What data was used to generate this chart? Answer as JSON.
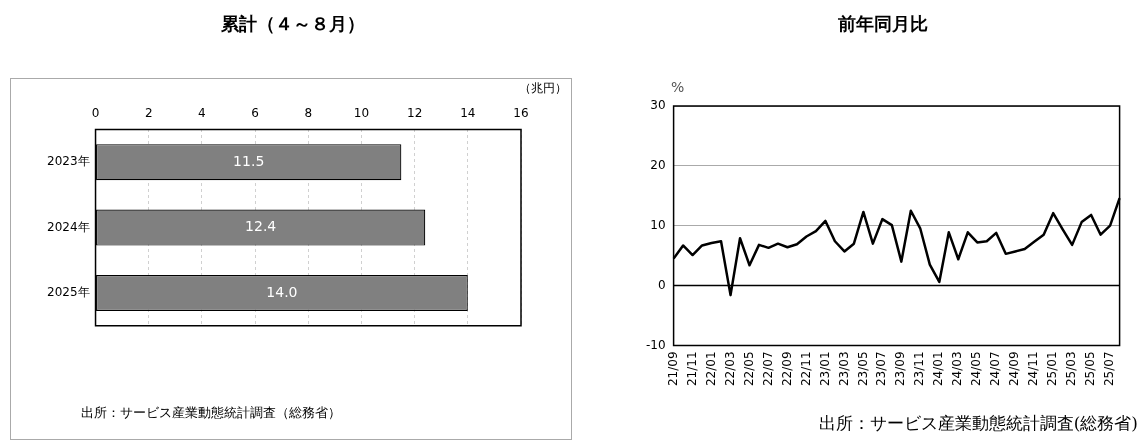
{
  "chart_data": [
    {
      "type": "bar",
      "title": "累計（４～８月）",
      "orientation": "horizontal",
      "categories": [
        "2023年",
        "2024年",
        "2025年"
      ],
      "values": [
        11.5,
        12.4,
        14.0
      ],
      "color": "#808080",
      "xlim": [
        0,
        16
      ],
      "xticks": [
        0,
        2,
        4,
        6,
        8,
        10,
        12,
        14,
        16
      ],
      "xlabel": "（兆円）",
      "grid": "x",
      "value_labels": [
        "11.5",
        "12.4",
        "14.0"
      ],
      "annotations": [
        "出所：サービス産業動態統計調査（総務省）"
      ]
    },
    {
      "type": "line",
      "title": "前年同月比",
      "ylabel": "%",
      "categories": [
        "21/09",
        null,
        "21/11",
        null,
        "22/01",
        null,
        "22/03",
        null,
        "22/05",
        null,
        "22/07",
        null,
        "22/09",
        null,
        "22/11",
        null,
        "23/01",
        null,
        "23/03",
        null,
        "23/05",
        null,
        "23/07",
        null,
        "23/09",
        null,
        "23/11",
        null,
        "24/01",
        null,
        "24/03",
        null,
        "24/05",
        null,
        "24/07",
        null,
        "24/09",
        null,
        "24/11",
        null,
        "25/01",
        null,
        "25/03",
        null,
        "25/05",
        null,
        "25/07",
        null
      ],
      "values": [
        4.5,
        6.7,
        5.1,
        6.7,
        7.1,
        7.4,
        -1.6,
        7.9,
        3.4,
        6.8,
        6.3,
        7.0,
        6.4,
        6.9,
        8.2,
        9.1,
        10.8,
        7.4,
        5.7,
        7.0,
        12.3,
        7.0,
        11.1,
        10.1,
        4.0,
        12.5,
        9.5,
        3.5,
        0.6,
        8.9,
        4.4,
        8.9,
        7.2,
        7.4,
        8.8,
        5.3,
        5.7,
        6.1,
        7.3,
        8.5,
        12.1,
        9.4,
        6.8,
        10.6,
        11.8,
        8.5,
        10.0,
        14.6
      ],
      "color": "#000000",
      "ylim": [
        -10,
        30
      ],
      "yticks": [
        -10,
        0,
        10,
        20,
        30
      ],
      "grid": "y",
      "marker": "none",
      "line_style": "solid",
      "ref_lines": [
        {
          "axis": "y",
          "value": 0,
          "color": "#000000"
        }
      ],
      "annotations": [
        "出所：サービス産業動態統計調査(総務省)"
      ]
    }
  ]
}
